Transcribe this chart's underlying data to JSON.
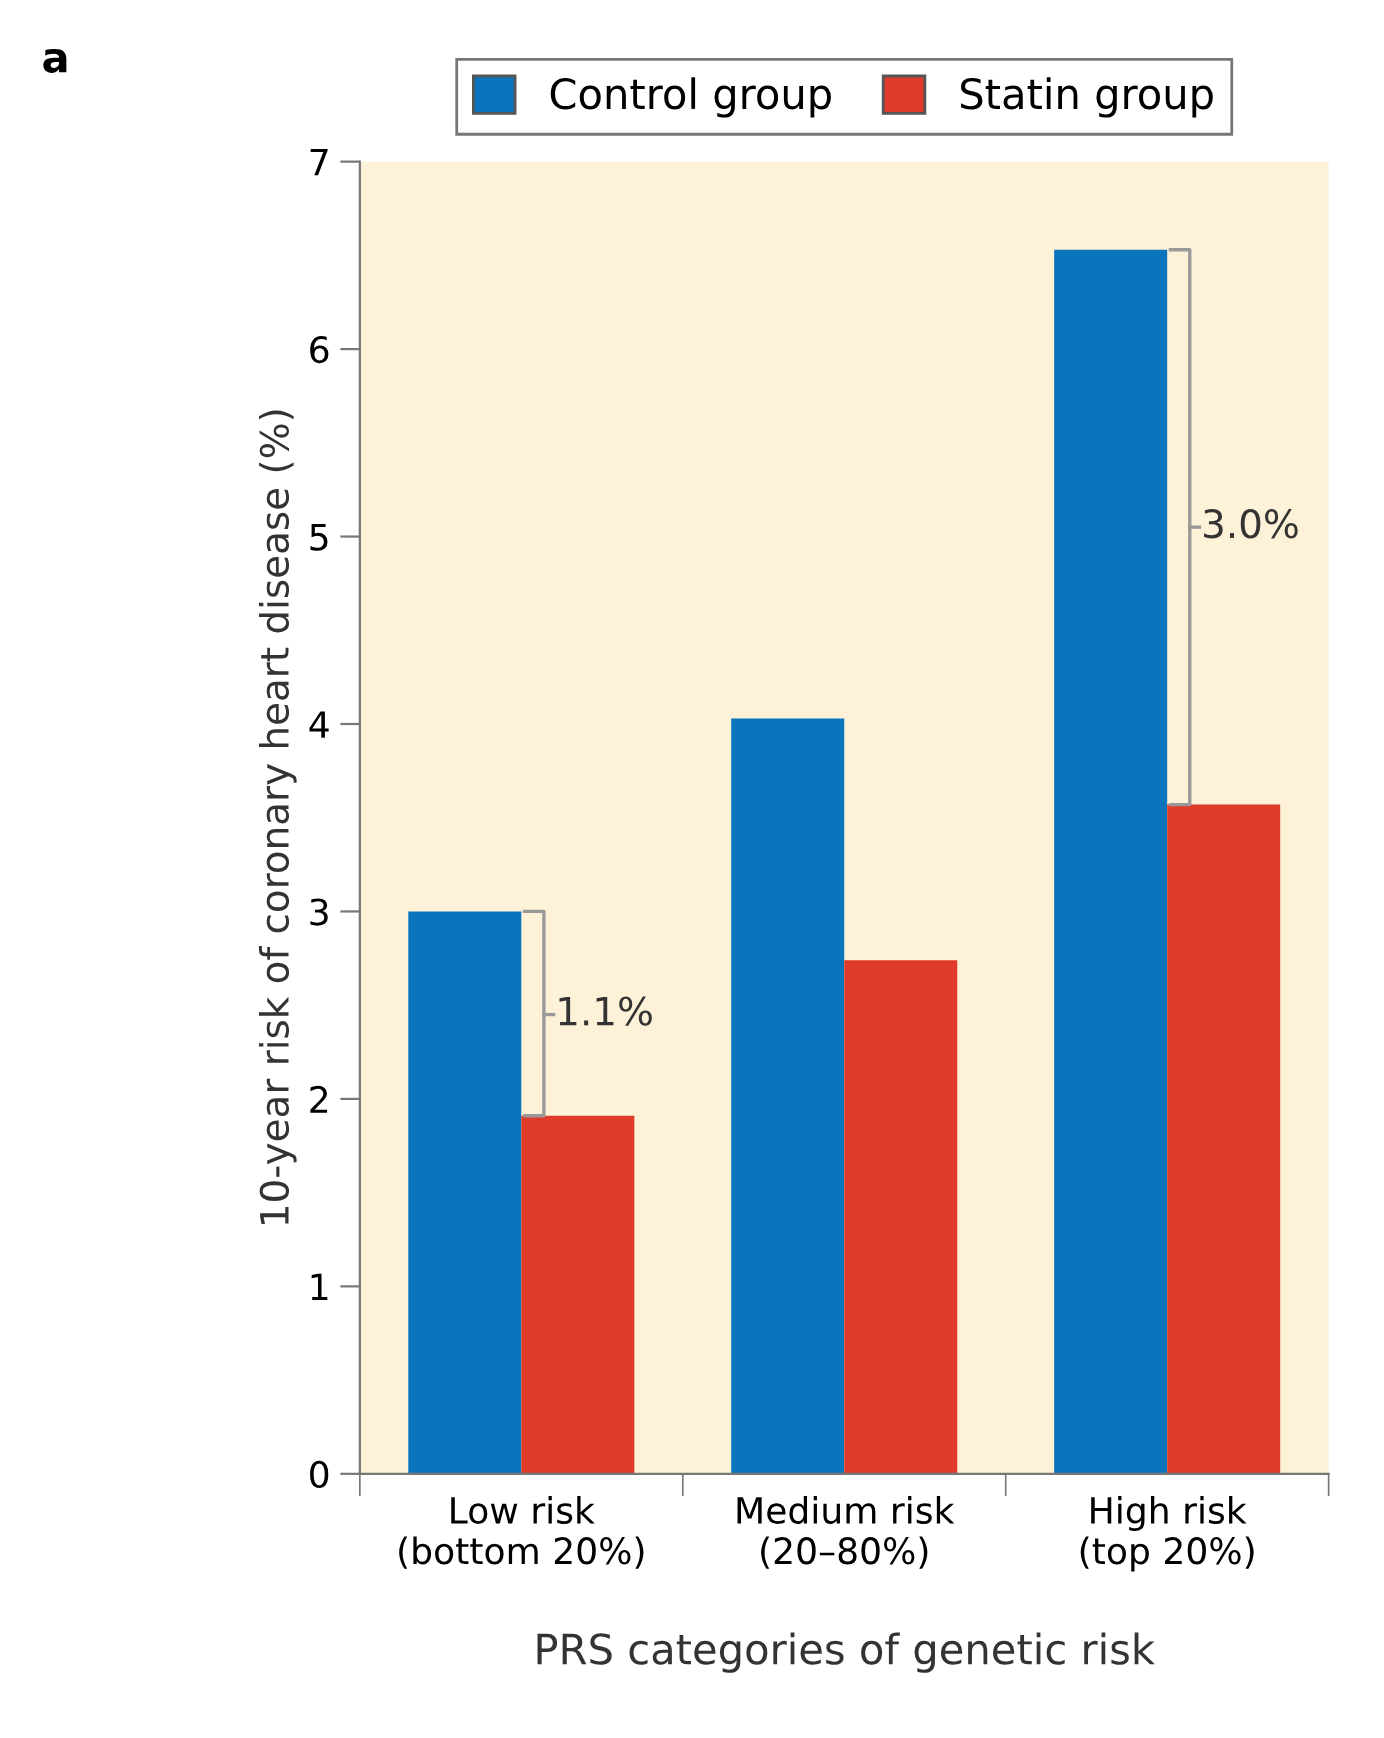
{
  "chart_data": {
    "type": "bar",
    "xlabel": "PRS categories of genetic risk",
    "ylabel": "10-year risk of coronary heart disease (%)",
    "categories": [
      "Low risk\n(bottom 20%)",
      "Medium risk\n(20–80%)",
      "High risk\n(top 20%)"
    ],
    "series": [
      {
        "name": "Control group",
        "color": "#0a74bd",
        "values": [
          3.0,
          4.03,
          6.53
        ]
      },
      {
        "name": "Statin group",
        "color": "#e03a2a",
        "values": [
          1.91,
          2.74,
          3.57
        ]
      }
    ],
    "ylim": [
      0,
      7
    ],
    "yticks": [
      0,
      1,
      2,
      3,
      4,
      5,
      6,
      7
    ],
    "grid": false,
    "legend": "top",
    "annotations": [
      "a",
      {
        "text": "1.1%",
        "x": "Low risk\n(bottom 20%)",
        "y": 2.45
      },
      {
        "text": "3.0%",
        "x": "High risk\n(top 20%)",
        "y": 5.05
      }
    ]
  }
}
